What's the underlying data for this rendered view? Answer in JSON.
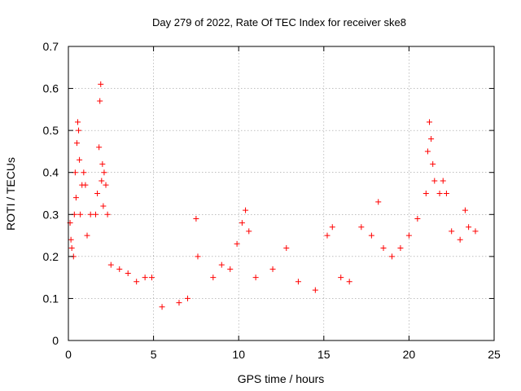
{
  "chart_data": {
    "type": "scatter",
    "title": "Day 279 of 2022, Rate Of TEC Index for receiver ske8",
    "xlabel": "GPS time / hours",
    "ylabel": "ROTI / TECUs",
    "xlim": [
      0,
      25
    ],
    "ylim": [
      0,
      0.7
    ],
    "xticks": [
      "0",
      "5",
      "10",
      "15",
      "20",
      "25"
    ],
    "yticks": [
      "0",
      "0.1",
      "0.2",
      "0.3",
      "0.4",
      "0.5",
      "0.6",
      "0.7"
    ],
    "grid": true,
    "marker": "plus",
    "color": "#ff0000",
    "series": [
      {
        "points": [
          [
            0.1,
            0.28
          ],
          [
            0.15,
            0.24
          ],
          [
            0.2,
            0.22
          ],
          [
            0.3,
            0.2
          ],
          [
            0.35,
            0.3
          ],
          [
            0.4,
            0.4
          ],
          [
            0.45,
            0.34
          ],
          [
            0.5,
            0.47
          ],
          [
            0.55,
            0.52
          ],
          [
            0.6,
            0.5
          ],
          [
            0.65,
            0.43
          ],
          [
            0.7,
            0.3
          ],
          [
            0.8,
            0.37
          ],
          [
            0.9,
            0.4
          ],
          [
            1.0,
            0.37
          ],
          [
            1.1,
            0.25
          ],
          [
            1.3,
            0.3
          ],
          [
            1.6,
            0.3
          ],
          [
            1.7,
            0.35
          ],
          [
            1.8,
            0.46
          ],
          [
            1.85,
            0.57
          ],
          [
            1.9,
            0.61
          ],
          [
            1.95,
            0.38
          ],
          [
            2.0,
            0.42
          ],
          [
            2.05,
            0.32
          ],
          [
            2.1,
            0.4
          ],
          [
            2.2,
            0.37
          ],
          [
            2.3,
            0.3
          ],
          [
            2.5,
            0.18
          ],
          [
            3.0,
            0.17
          ],
          [
            3.5,
            0.16
          ],
          [
            4.0,
            0.14
          ],
          [
            4.5,
            0.15
          ],
          [
            4.9,
            0.15
          ],
          [
            5.5,
            0.08
          ],
          [
            6.5,
            0.09
          ],
          [
            7.0,
            0.1
          ],
          [
            7.5,
            0.29
          ],
          [
            7.6,
            0.2
          ],
          [
            8.5,
            0.15
          ],
          [
            9.0,
            0.18
          ],
          [
            9.5,
            0.17
          ],
          [
            9.9,
            0.23
          ],
          [
            10.2,
            0.28
          ],
          [
            10.4,
            0.31
          ],
          [
            10.6,
            0.26
          ],
          [
            11.0,
            0.15
          ],
          [
            12.0,
            0.17
          ],
          [
            12.8,
            0.22
          ],
          [
            13.5,
            0.14
          ],
          [
            14.5,
            0.12
          ],
          [
            15.2,
            0.25
          ],
          [
            15.5,
            0.27
          ],
          [
            16.0,
            0.15
          ],
          [
            16.5,
            0.14
          ],
          [
            17.2,
            0.27
          ],
          [
            17.8,
            0.25
          ],
          [
            18.2,
            0.33
          ],
          [
            18.5,
            0.22
          ],
          [
            19.0,
            0.2
          ],
          [
            19.5,
            0.22
          ],
          [
            20.0,
            0.25
          ],
          [
            20.5,
            0.29
          ],
          [
            21.0,
            0.35
          ],
          [
            21.1,
            0.45
          ],
          [
            21.2,
            0.52
          ],
          [
            21.3,
            0.48
          ],
          [
            21.4,
            0.42
          ],
          [
            21.5,
            0.38
          ],
          [
            21.8,
            0.35
          ],
          [
            22.0,
            0.38
          ],
          [
            22.2,
            0.35
          ],
          [
            22.5,
            0.26
          ],
          [
            23.0,
            0.24
          ],
          [
            23.3,
            0.31
          ],
          [
            23.5,
            0.27
          ],
          [
            23.9,
            0.26
          ]
        ]
      }
    ]
  }
}
